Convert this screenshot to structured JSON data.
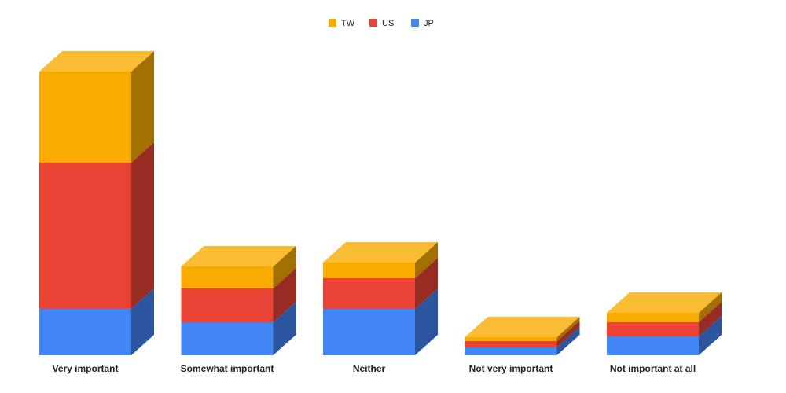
{
  "chart_data": {
    "type": "bar3d_stacked",
    "categories": [
      "Very important",
      "Somewhat important",
      "Neither",
      "Not very important",
      "Not important at all"
    ],
    "series": [
      {
        "name": "TW",
        "color": "#f9ab00",
        "values": [
          116,
          28,
          20,
          5,
          12
        ]
      },
      {
        "name": "US",
        "color": "#ea4335",
        "values": [
          186,
          43,
          39,
          8,
          18
        ]
      },
      {
        "name": "JP",
        "color": "#4285f4",
        "values": [
          59,
          42,
          59,
          10,
          24
        ]
      }
    ]
  }
}
